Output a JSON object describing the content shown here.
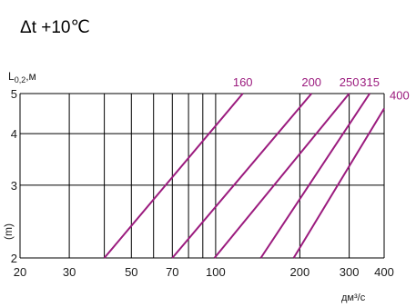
{
  "heading": "Δt +10℃",
  "chart_data": {
    "type": "line",
    "title": "",
    "ylabel": "L",
    "ylabel_sub": "0,2",
    "ylabel_suffix": ",м",
    "ylabel_side": "(m)",
    "xlabel": "дм³/с",
    "x_scale": "log",
    "y_scale": "log",
    "xlim": [
      20,
      400
    ],
    "ylim": [
      2,
      5
    ],
    "x_gridlines": [
      20,
      30,
      40,
      50,
      60,
      70,
      80,
      90,
      100,
      200,
      300,
      400
    ],
    "y_gridlines": [
      2,
      3,
      4,
      5
    ],
    "x_ticks": [
      {
        "value": 20,
        "label": "20"
      },
      {
        "value": 30,
        "label": "30"
      },
      {
        "value": 50,
        "label": "50"
      },
      {
        "value": 70,
        "label": "70"
      },
      {
        "value": 100,
        "label": "100"
      },
      {
        "value": 200,
        "label": "200"
      },
      {
        "value": 300,
        "label": "300"
      },
      {
        "value": 400,
        "label": "400"
      }
    ],
    "y_ticks": [
      {
        "value": 2,
        "label": "2"
      },
      {
        "value": 3,
        "label": "3"
      },
      {
        "value": 4,
        "label": "4"
      },
      {
        "value": 5,
        "label": "5"
      }
    ],
    "grid": true,
    "line_color": "#9b1b7e",
    "series": [
      {
        "name": "160",
        "x": [
          40,
          125
        ],
        "y": [
          2,
          5
        ]
      },
      {
        "name": "200",
        "x": [
          70,
          220
        ],
        "y": [
          2,
          5
        ]
      },
      {
        "name": "250",
        "x": [
          99,
          300
        ],
        "y": [
          2,
          5
        ]
      },
      {
        "name": "315",
        "x": [
          145,
          355
        ],
        "y": [
          2,
          5
        ]
      },
      {
        "name": "400",
        "x": [
          190,
          400
        ],
        "y": [
          2,
          4.6
        ]
      }
    ]
  }
}
